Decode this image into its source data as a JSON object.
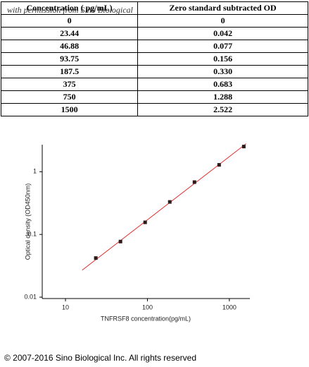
{
  "table": {
    "header": [
      "Concentration ( pg/mL)",
      "Zero standard subtracted OD"
    ],
    "watermark": "with permission from Sino Biological",
    "rows": [
      [
        "0",
        "0"
      ],
      [
        "23.44",
        "0.042"
      ],
      [
        "46.88",
        "0.077"
      ],
      [
        "93.75",
        "0.156"
      ],
      [
        "187.5",
        "0.330"
      ],
      [
        "375",
        "0.683"
      ],
      [
        "750",
        "1.288"
      ],
      [
        "1500",
        "2.522"
      ]
    ]
  },
  "chart_data": {
    "type": "scatter",
    "xlabel": "TNFRSF8 concentration(pg/mL)",
    "ylabel": "Optical density (OD450nm)",
    "xscale": "log",
    "yscale": "log",
    "xlim": [
      5.2,
      1780
    ],
    "ylim": [
      0.0095,
      2.7
    ],
    "xticks": [
      10,
      100,
      1000
    ],
    "yticks": [
      0.01,
      0.1,
      1
    ],
    "x": [
      23.44,
      46.88,
      93.75,
      187.5,
      375,
      750,
      1500
    ],
    "values": [
      0.042,
      0.077,
      0.156,
      0.33,
      0.683,
      1.288,
      2.522
    ],
    "color": "#2a1a1a",
    "trendline": {
      "x": [
        16,
        1600
      ],
      "values": [
        0.027,
        2.8
      ],
      "color": "#e03030"
    }
  },
  "footer": "© 2007-2016 Sino Biological Inc. All rights reserved"
}
